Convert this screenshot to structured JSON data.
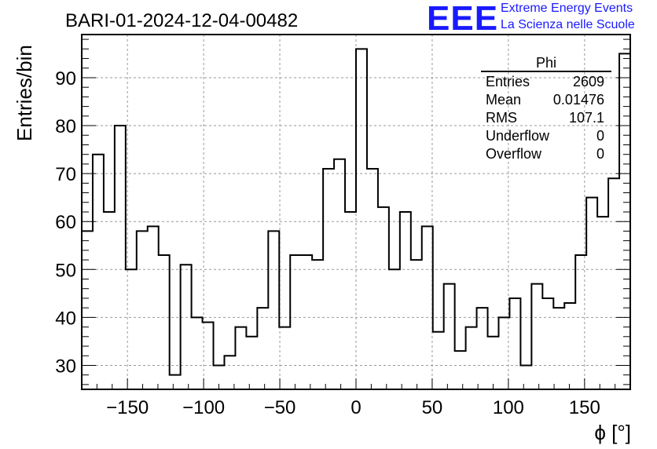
{
  "logo": {
    "mark": "EEE",
    "line1": "Extreme Energy Events",
    "line2": "La Scienza nelle Scuole",
    "color": "#1a1aff"
  },
  "chart_data": {
    "type": "histogram",
    "title": "BARI-01-2024-12-04-00482",
    "xlabel": "ϕ [°]",
    "ylabel": "Entries/bin",
    "xlim": [
      -180,
      180
    ],
    "ylim": [
      25,
      99
    ],
    "x_ticks": [
      -150,
      -100,
      -50,
      0,
      50,
      100,
      150
    ],
    "x_tick_labels": [
      "−150",
      "−100",
      "−50",
      "0",
      "50",
      "100",
      "150"
    ],
    "y_ticks": [
      30,
      40,
      50,
      60,
      70,
      80,
      90
    ],
    "y_tick_labels": [
      "30",
      "40",
      "50",
      "60",
      "70",
      "80",
      "90"
    ],
    "grid": true,
    "bin_width": 7.2,
    "bin_low": -180,
    "values": [
      58,
      74,
      62,
      80,
      50,
      58,
      59,
      53,
      28,
      51,
      40,
      39,
      30,
      32,
      38,
      36,
      42,
      58,
      38,
      53,
      53,
      52,
      71,
      73,
      62,
      96,
      71,
      63,
      50,
      62,
      52,
      59,
      37,
      47,
      33,
      38,
      42,
      36,
      40,
      44,
      30,
      47,
      44,
      42,
      43,
      53,
      65,
      61,
      69,
      95
    ],
    "stats": {
      "name": "Phi",
      "rows": [
        {
          "label": "Entries",
          "value": "2609"
        },
        {
          "label": "Mean",
          "value": "0.01476"
        },
        {
          "label": "RMS",
          "value": "107.1"
        },
        {
          "label": "Underflow",
          "value": "0"
        },
        {
          "label": "Overflow",
          "value": "0"
        }
      ]
    }
  }
}
